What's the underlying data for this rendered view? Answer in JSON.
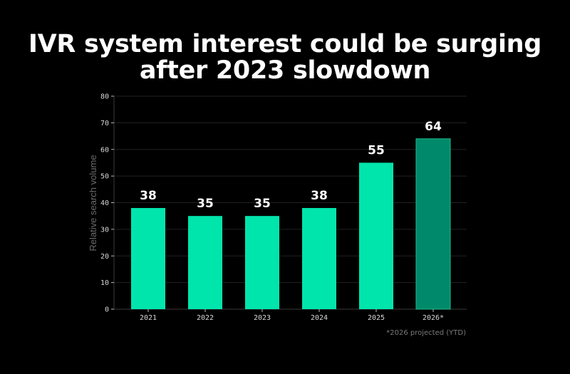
{
  "chart_data": {
    "type": "bar",
    "title_lines": [
      "IVR system interest could be surging",
      "after 2023 slowdown"
    ],
    "xlabel": "",
    "ylabel": "Relative search volume",
    "categories": [
      "2021",
      "2022",
      "2023",
      "2024",
      "2025",
      "2026*"
    ],
    "values": [
      38,
      35,
      35,
      38,
      55,
      64
    ],
    "data_labels": [
      "38",
      "35",
      "35",
      "38",
      "55",
      "64"
    ],
    "projected": [
      false,
      false,
      false,
      false,
      false,
      true
    ],
    "ylim": [
      0,
      80
    ],
    "yticks": [
      0,
      10,
      20,
      30,
      40,
      50,
      60,
      70,
      80
    ],
    "grid": true,
    "footnote": "*2026 projected (YTD)",
    "colors": {
      "bar": "#00e5ac",
      "projected_bar": "#00896a",
      "projected_border": "#1fb98a",
      "background": "#000000",
      "grid": "#222222"
    }
  }
}
